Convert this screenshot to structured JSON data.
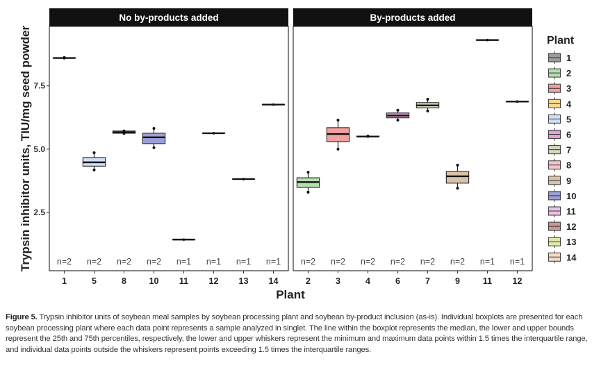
{
  "chart_data": {
    "type": "boxplot",
    "ylabel": "Trypsin inhibitor units, TIU/mg seed powder",
    "xlabel": "Plant",
    "ylim": [
      0.2,
      9.85
    ],
    "yticks": [
      "2.5",
      "5.0",
      "7.5"
    ],
    "grid": false,
    "legend": {
      "title": "Plant",
      "position": "right",
      "items": [
        {
          "label": "1",
          "color": "#9b9b9b"
        },
        {
          "label": "2",
          "color": "#b5dfb1"
        },
        {
          "label": "3",
          "color": "#f3a0a0"
        },
        {
          "label": "4",
          "color": "#fbd88e"
        },
        {
          "label": "5",
          "color": "#cfe0f5"
        },
        {
          "label": "6",
          "color": "#e0a3d6"
        },
        {
          "label": "7",
          "color": "#d0dab9"
        },
        {
          "label": "8",
          "color": "#f6c5cb"
        },
        {
          "label": "9",
          "color": "#d9c2a8"
        },
        {
          "label": "10",
          "color": "#9c9fd6"
        },
        {
          "label": "11",
          "color": "#ebc4ea"
        },
        {
          "label": "12",
          "color": "#c99696"
        },
        {
          "label": "13",
          "color": "#dfeaa8"
        },
        {
          "label": "14",
          "color": "#f6d9c7"
        }
      ]
    },
    "panels": [
      {
        "title": "No by-products added",
        "plants": [
          {
            "plant": "1",
            "n": "n=2",
            "min": 8.6,
            "q1": 8.6,
            "median": 8.6,
            "q3": 8.6,
            "max": 8.62
          },
          {
            "plant": "5",
            "n": "n=2",
            "min": 4.18,
            "q1": 4.33,
            "median": 4.48,
            "q3": 4.67,
            "max": 4.86
          },
          {
            "plant": "8",
            "n": "n=2",
            "min": 5.62,
            "q1": 5.63,
            "median": 5.67,
            "q3": 5.72,
            "max": 5.72
          },
          {
            "plant": "10",
            "n": "n=2",
            "min": 5.06,
            "q1": 5.22,
            "median": 5.47,
            "q3": 5.63,
            "max": 5.82
          },
          {
            "plant": "11",
            "n": "n=1",
            "min": 1.43,
            "q1": 1.43,
            "median": 1.43,
            "q3": 1.43,
            "max": 1.43
          },
          {
            "plant": "12",
            "n": "n=1",
            "min": 5.63,
            "q1": 5.63,
            "median": 5.63,
            "q3": 5.63,
            "max": 5.63
          },
          {
            "plant": "13",
            "n": "n=1",
            "min": 3.82,
            "q1": 3.82,
            "median": 3.82,
            "q3": 3.82,
            "max": 3.82
          },
          {
            "plant": "14",
            "n": "n=1",
            "min": 6.76,
            "q1": 6.76,
            "median": 6.76,
            "q3": 6.76,
            "max": 6.76
          }
        ]
      },
      {
        "title": "By-products added",
        "plants": [
          {
            "plant": "2",
            "n": "n=2",
            "min": 3.3,
            "q1": 3.49,
            "median": 3.7,
            "q3": 3.87,
            "max": 4.09
          },
          {
            "plant": "3",
            "n": "n=2",
            "min": 5.0,
            "q1": 5.3,
            "median": 5.6,
            "q3": 5.85,
            "max": 6.15
          },
          {
            "plant": "4",
            "n": "n=2",
            "min": 5.5,
            "q1": 5.5,
            "median": 5.5,
            "q3": 5.51,
            "max": 5.52
          },
          {
            "plant": "6",
            "n": "n=2",
            "min": 6.15,
            "q1": 6.24,
            "median": 6.33,
            "q3": 6.43,
            "max": 6.54
          },
          {
            "plant": "7",
            "n": "n=2",
            "min": 6.51,
            "q1": 6.63,
            "median": 6.73,
            "q3": 6.84,
            "max": 6.97
          },
          {
            "plant": "9",
            "n": "n=2",
            "min": 3.46,
            "q1": 3.66,
            "median": 3.93,
            "q3": 4.12,
            "max": 4.37
          },
          {
            "plant": "11",
            "n": "n=1",
            "min": 9.31,
            "q1": 9.31,
            "median": 9.31,
            "q3": 9.31,
            "max": 9.31
          },
          {
            "plant": "12",
            "n": "n=1",
            "min": 6.88,
            "q1": 6.88,
            "median": 6.88,
            "q3": 6.88,
            "max": 6.88
          }
        ]
      }
    ]
  },
  "caption": {
    "label": "Figure 5.",
    "text": " Trypsin inhibitor units of soybean meal samples by soybean processing plant and soybean by-product inclusion (as-is). Individual boxplots are presented for each soybean processing plant where each data point represents a sample analyzed in singlet. The line within the boxplot represents the median, the lower and upper bounds represent the 25th and 75th percentiles, respectively, the lower and upper whiskers represent the minimum and maximum data points within 1.5 times the interquartile range, and individual data points outside the whiskers represent points exceeding 1.5 times the interquartile ranges."
  }
}
